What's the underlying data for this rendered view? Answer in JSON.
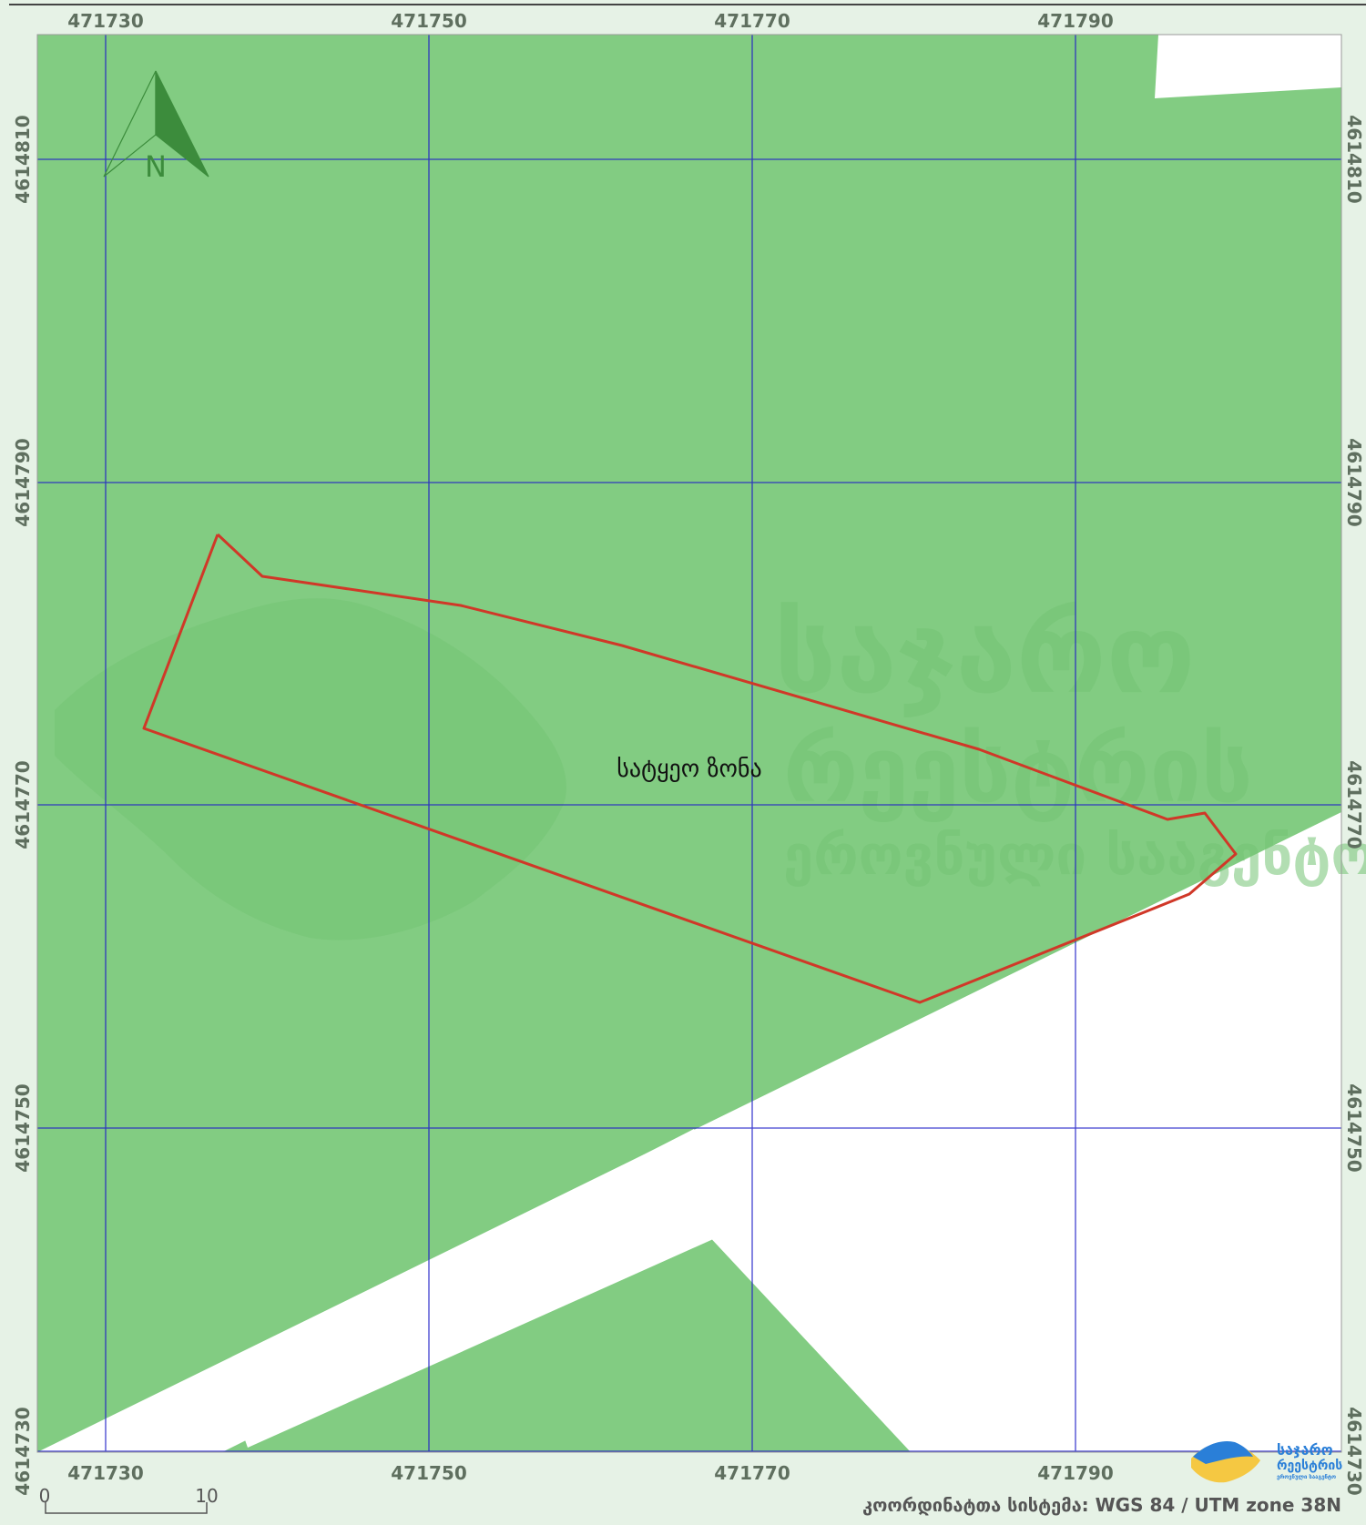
{
  "map": {
    "zone_label": "სატყეო ზონა",
    "coordinate_system_text": "კოორდინატთა სისტემა: WGS 84 / UTM zone 38N",
    "north_arrow_label": "N",
    "easting_ticks": [
      "471730",
      "471750",
      "471770",
      "471790"
    ],
    "northing_ticks": [
      "4614810",
      "4614790",
      "4614770",
      "4614750",
      "4614730"
    ],
    "scale_bar": {
      "start_label": "0",
      "end_label": "10"
    },
    "watermark": {
      "line1": "საჯარო",
      "line2": "რეესტრის",
      "line3": "ეროვნული სააგენტო"
    },
    "logo": {
      "line1": "საჯარო",
      "line2": "რეესტრის",
      "line3": "ეროვნული სააგენტო"
    },
    "colors": {
      "forest": "#82cc82",
      "grid": "#2020c8",
      "parcel_outline": "#d03828",
      "frame_bg": "#e6f2e6"
    }
  }
}
